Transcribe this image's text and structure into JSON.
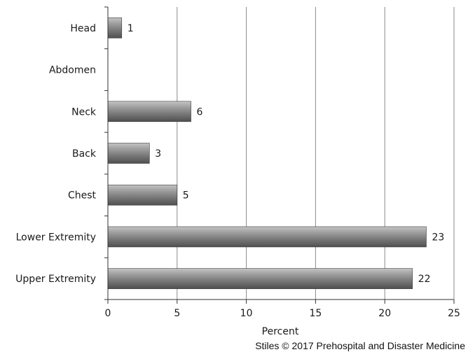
{
  "chart_data": {
    "type": "bar",
    "orientation": "horizontal",
    "categories": [
      "Head",
      "Abdomen",
      "Neck",
      "Back",
      "Chest",
      "Lower Extremity",
      "Upper Extremity"
    ],
    "values": [
      1,
      0,
      6,
      3,
      5,
      23,
      22
    ],
    "data_labels": [
      "1",
      "",
      "6",
      "3",
      "5",
      "23",
      "22"
    ],
    "xlabel": "Percent",
    "xlim": [
      0,
      25
    ],
    "xticks": [
      0,
      5,
      10,
      15,
      20,
      25
    ],
    "grid": "vertical",
    "bar_color": "#808080"
  },
  "credit": "Stiles © 2017 Prehospital and Disaster Medicine"
}
